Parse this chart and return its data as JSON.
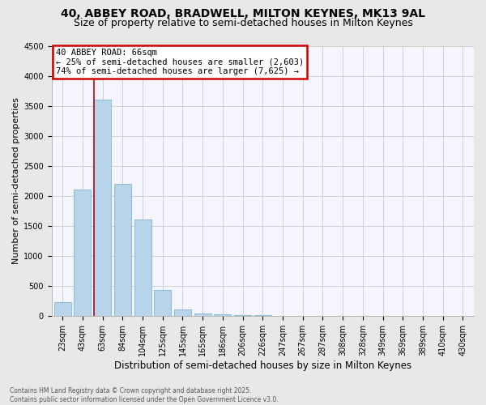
{
  "title": "40, ABBEY ROAD, BRADWELL, MILTON KEYNES, MK13 9AL",
  "subtitle": "Size of property relative to semi-detached houses in Milton Keynes",
  "xlabel": "Distribution of semi-detached houses by size in Milton Keynes",
  "ylabel": "Number of semi-detached properties",
  "footer1": "Contains HM Land Registry data © Crown copyright and database right 2025.",
  "footer2": "Contains public sector information licensed under the Open Government Licence v3.0.",
  "bar_labels": [
    "23sqm",
    "43sqm",
    "63sqm",
    "84sqm",
    "104sqm",
    "125sqm",
    "145sqm",
    "165sqm",
    "186sqm",
    "206sqm",
    "226sqm",
    "247sqm",
    "267sqm",
    "287sqm",
    "308sqm",
    "328sqm",
    "349sqm",
    "369sqm",
    "389sqm",
    "410sqm",
    "430sqm"
  ],
  "bar_values": [
    230,
    2100,
    3600,
    2200,
    1600,
    430,
    110,
    40,
    20,
    10,
    5,
    3,
    2,
    1,
    1,
    0,
    0,
    0,
    0,
    0,
    0
  ],
  "bar_color": "#b8d4ea",
  "bar_edge_color": "#7fb3d6",
  "vline_x": 1.575,
  "vline_color": "#cc0000",
  "ann_title": "40 ABBEY ROAD: 66sqm",
  "ann_line1": "← 25% of semi-detached houses are smaller (2,603)",
  "ann_line2": "74% of semi-detached houses are larger (7,625) →",
  "ann_edge_color": "#cc0000",
  "ylim_max": 4500,
  "yticks": [
    0,
    500,
    1000,
    1500,
    2000,
    2500,
    3000,
    3500,
    4000,
    4500
  ],
  "bg_color": "#e8e8e8",
  "plot_bg_color": "#f5f5ff",
  "grid_color": "#d0d0d0",
  "title_fontsize": 10,
  "subtitle_fontsize": 9,
  "tick_fontsize": 7,
  "ylabel_fontsize": 8,
  "xlabel_fontsize": 8.5,
  "footer_fontsize": 5.5
}
